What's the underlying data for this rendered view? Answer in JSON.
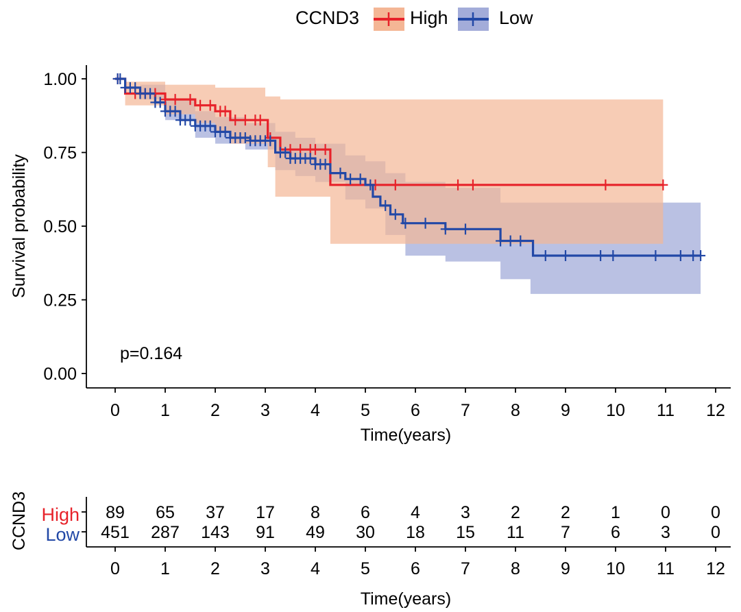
{
  "chart_data": {
    "type": "line",
    "subtype": "kaplan-meier",
    "legend": {
      "title": "CCND3",
      "position": "top",
      "items": [
        {
          "label": "High",
          "color": "#E7222A"
        },
        {
          "label": "Low",
          "color": "#2248A6"
        }
      ]
    },
    "xlabel": "Time(years)",
    "ylabel": "Survival probability",
    "xlim": [
      0,
      12
    ],
    "ylim": [
      0,
      1
    ],
    "x_ticks": [
      "0",
      "1",
      "2",
      "3",
      "4",
      "5",
      "6",
      "7",
      "8",
      "9",
      "10",
      "11",
      "12"
    ],
    "y_ticks": [
      "0.00",
      "0.25",
      "0.50",
      "0.75",
      "1.00"
    ],
    "grid": false,
    "annotation": "p=0.164",
    "series": [
      {
        "name": "High",
        "color": "#E7222A",
        "ci_color": "#F4B695",
        "steps": [
          [
            0,
            1.0
          ],
          [
            0.2,
            0.95
          ],
          [
            1.0,
            0.93
          ],
          [
            1.6,
            0.91
          ],
          [
            2.0,
            0.89
          ],
          [
            2.3,
            0.86
          ],
          [
            3.05,
            0.8
          ],
          [
            3.3,
            0.76
          ],
          [
            4.3,
            0.64
          ],
          [
            10.95,
            0.64
          ]
        ],
        "ci_upper": [
          [
            0,
            1.0
          ],
          [
            0.2,
            0.99
          ],
          [
            1.0,
            0.98
          ],
          [
            2.0,
            0.97
          ],
          [
            3.0,
            0.94
          ],
          [
            3.3,
            0.93
          ],
          [
            4.3,
            0.93
          ],
          [
            10.95,
            0.93
          ]
        ],
        "ci_lower": [
          [
            0,
            1.0
          ],
          [
            0.2,
            0.91
          ],
          [
            1.0,
            0.88
          ],
          [
            1.6,
            0.85
          ],
          [
            2.0,
            0.82
          ],
          [
            2.3,
            0.78
          ],
          [
            3.05,
            0.7
          ],
          [
            3.2,
            0.6
          ],
          [
            4.3,
            0.44
          ],
          [
            10.95,
            0.44
          ]
        ],
        "censor_times": [
          0.05,
          0.4,
          0.6,
          0.8,
          1.0,
          1.2,
          1.5,
          1.7,
          1.9,
          2.1,
          2.2,
          2.4,
          2.6,
          2.8,
          2.9,
          3.1,
          3.5,
          3.7,
          3.9,
          4.0,
          4.2,
          5.2,
          5.6,
          6.85,
          7.15,
          9.8,
          10.95
        ]
      },
      {
        "name": "Low",
        "color": "#2248A6",
        "ci_color": "#A3ACD9",
        "steps": [
          [
            0,
            1.0
          ],
          [
            0.2,
            0.97
          ],
          [
            0.5,
            0.95
          ],
          [
            0.8,
            0.92
          ],
          [
            1.0,
            0.89
          ],
          [
            1.3,
            0.86
          ],
          [
            1.6,
            0.84
          ],
          [
            2.0,
            0.82
          ],
          [
            2.3,
            0.8
          ],
          [
            2.7,
            0.79
          ],
          [
            3.2,
            0.75
          ],
          [
            3.5,
            0.73
          ],
          [
            4.0,
            0.71
          ],
          [
            4.3,
            0.68
          ],
          [
            4.6,
            0.66
          ],
          [
            5.0,
            0.64
          ],
          [
            5.15,
            0.6
          ],
          [
            5.3,
            0.57
          ],
          [
            5.5,
            0.54
          ],
          [
            5.75,
            0.51
          ],
          [
            6.1,
            0.51
          ],
          [
            6.6,
            0.49
          ],
          [
            7.7,
            0.45
          ],
          [
            8.35,
            0.4
          ],
          [
            11.7,
            0.4
          ]
        ],
        "ci_upper": [
          [
            0,
            1.0
          ],
          [
            0.5,
            0.98
          ],
          [
            1.0,
            0.93
          ],
          [
            1.6,
            0.89
          ],
          [
            2.0,
            0.87
          ],
          [
            2.6,
            0.85
          ],
          [
            3.2,
            0.82
          ],
          [
            3.6,
            0.8
          ],
          [
            4.0,
            0.78
          ],
          [
            4.6,
            0.74
          ],
          [
            5.0,
            0.72
          ],
          [
            5.4,
            0.68
          ],
          [
            5.8,
            0.65
          ],
          [
            6.6,
            0.63
          ],
          [
            7.7,
            0.58
          ],
          [
            11.7,
            0.58
          ]
        ],
        "ci_lower": [
          [
            0,
            1.0
          ],
          [
            0.5,
            0.93
          ],
          [
            1.0,
            0.86
          ],
          [
            1.6,
            0.8
          ],
          [
            2.0,
            0.78
          ],
          [
            2.6,
            0.76
          ],
          [
            3.2,
            0.69
          ],
          [
            3.6,
            0.67
          ],
          [
            4.0,
            0.65
          ],
          [
            4.6,
            0.59
          ],
          [
            5.0,
            0.56
          ],
          [
            5.4,
            0.47
          ],
          [
            5.8,
            0.4
          ],
          [
            6.6,
            0.38
          ],
          [
            7.7,
            0.32
          ],
          [
            8.3,
            0.27
          ],
          [
            11.7,
            0.27
          ]
        ],
        "censor_times": [
          0.05,
          0.1,
          0.2,
          0.3,
          0.4,
          0.5,
          0.6,
          0.7,
          0.8,
          0.9,
          1.0,
          1.1,
          1.2,
          1.3,
          1.4,
          1.5,
          1.6,
          1.7,
          1.8,
          1.9,
          2.0,
          2.1,
          2.2,
          2.3,
          2.4,
          2.5,
          2.6,
          2.7,
          2.8,
          2.9,
          3.0,
          3.1,
          3.3,
          3.4,
          3.5,
          3.6,
          3.7,
          3.8,
          3.9,
          4.0,
          4.1,
          4.2,
          4.5,
          4.7,
          4.9,
          5.1,
          5.4,
          5.6,
          5.8,
          6.2,
          6.6,
          7.0,
          7.7,
          7.9,
          8.1,
          8.6,
          9.0,
          9.7,
          9.95,
          10.8,
          11.3,
          11.55,
          11.7
        ]
      }
    ],
    "risk_table": {
      "ylabel": "CCND3",
      "xlabel": "Time(years)",
      "times": [
        "0",
        "1",
        "2",
        "3",
        "4",
        "5",
        "6",
        "7",
        "8",
        "9",
        "10",
        "11",
        "12"
      ],
      "rows": [
        {
          "label": "High",
          "color": "#E7222A",
          "counts": [
            "89",
            "65",
            "37",
            "17",
            "8",
            "6",
            "4",
            "3",
            "2",
            "2",
            "1",
            "0",
            "0"
          ]
        },
        {
          "label": "Low",
          "color": "#2248A6",
          "counts": [
            "451",
            "287",
            "143",
            "91",
            "49",
            "30",
            "18",
            "15",
            "11",
            "7",
            "6",
            "3",
            "0"
          ]
        }
      ]
    }
  }
}
